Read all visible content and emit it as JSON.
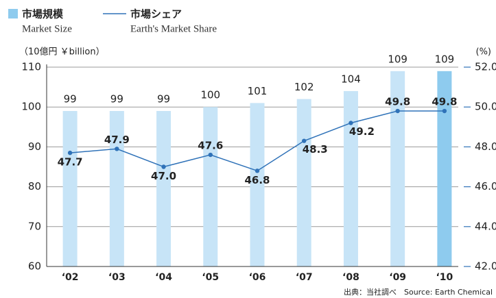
{
  "chart_data": {
    "type": "bar",
    "legend_position": "top-left",
    "categories": [
      "‘02",
      "‘03",
      "‘04",
      "‘05",
      "‘06",
      "‘07",
      "‘08",
      "‘09",
      "‘10"
    ],
    "series": [
      {
        "name": "市場規模",
        "name_en": "Market Size",
        "color": "#c7e4f7",
        "colors": [
          "#c7e4f7",
          "#c7e4f7",
          "#c7e4f7",
          "#c7e4f7",
          "#c7e4f7",
          "#c7e4f7",
          "#c7e4f7",
          "#c7e4f7",
          "#8ecbee"
        ],
        "values": [
          99,
          99,
          99,
          100,
          101,
          102,
          104,
          109,
          109
        ]
      },
      {
        "name": "市場シェア",
        "name_en": "Earth's Market Share",
        "type": "line",
        "axis": "y2",
        "color": "#2f72b8",
        "values": [
          47.7,
          47.9,
          47.0,
          47.6,
          46.8,
          48.3,
          49.2,
          49.8,
          49.8
        ],
        "value_labels": [
          "47.7",
          "47.9",
          "47.0",
          "47.6",
          "46.8",
          "48.3",
          "49.2",
          "49.8",
          "49.8"
        ]
      }
    ],
    "ylabel": "（10億円 ￥billion）",
    "y2label": "(%)",
    "ylim": [
      60,
      110
    ],
    "yticks": [
      60,
      70,
      80,
      90,
      100,
      110
    ],
    "y2lim": [
      42,
      52
    ],
    "y2ticks": [
      {
        "value": 42,
        "label": "42.0"
      },
      {
        "value": 44,
        "label": "44.0"
      },
      {
        "value": 46,
        "label": "46.0"
      },
      {
        "value": 48,
        "label": "48.0"
      },
      {
        "value": 50,
        "label": "50.0"
      },
      {
        "value": 52,
        "label": "52.0"
      }
    ],
    "grid": true,
    "source": "出典：当社調べ　Source: Earth Chemical"
  }
}
